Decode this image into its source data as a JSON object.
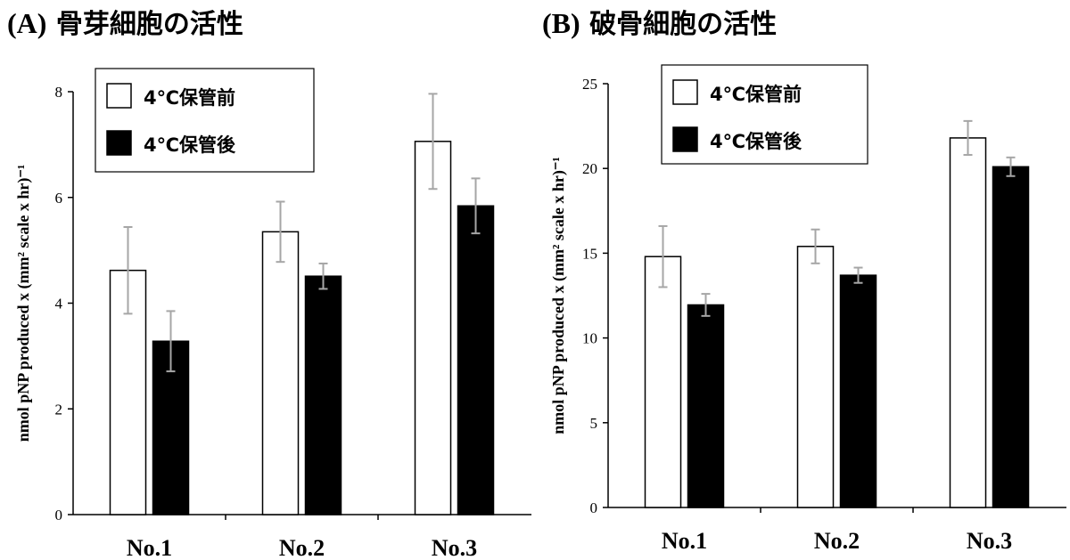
{
  "chart_data": [
    {
      "type": "bar",
      "title": "(A) 骨芽細胞の活性",
      "title_letter": "(A)",
      "title_text": "骨芽細胞の活性",
      "ylabel": "nmol pNP produced x (mm² scale x hr)⁻¹",
      "categories": [
        "No.1",
        "No.2",
        "No.3"
      ],
      "ylim": [
        0,
        8
      ],
      "yticks": [
        0,
        2,
        4,
        6,
        8
      ],
      "series": [
        {
          "name": "4℃保管前",
          "color": "#ffffff",
          "values": [
            4.62,
            5.35,
            7.06
          ],
          "errors": [
            0.82,
            0.57,
            0.9
          ]
        },
        {
          "name": "4℃保管後",
          "color": "#000000",
          "values": [
            3.28,
            4.51,
            5.84
          ],
          "errors": [
            0.57,
            0.24,
            0.52
          ]
        }
      ],
      "legend": "top-left",
      "grid": false
    },
    {
      "type": "bar",
      "title": "(B) 破骨細胞の活性",
      "title_letter": "(B)",
      "title_text": "破骨細胞の活性",
      "ylabel": "nmol pNP produced x (mm² scale x hr)⁻¹",
      "categories": [
        "No.1",
        "No.2",
        "No.3"
      ],
      "ylim": [
        0,
        25
      ],
      "yticks": [
        0,
        5,
        10,
        15,
        20,
        25
      ],
      "series": [
        {
          "name": "4℃保管前",
          "color": "#ffffff",
          "values": [
            14.8,
            15.4,
            21.8
          ],
          "errors": [
            1.8,
            1.0,
            1.0
          ]
        },
        {
          "name": "4℃保管後",
          "color": "#000000",
          "values": [
            11.95,
            13.7,
            20.1
          ],
          "errors": [
            0.65,
            0.45,
            0.55
          ]
        }
      ],
      "legend": "top-left",
      "grid": false
    }
  ]
}
